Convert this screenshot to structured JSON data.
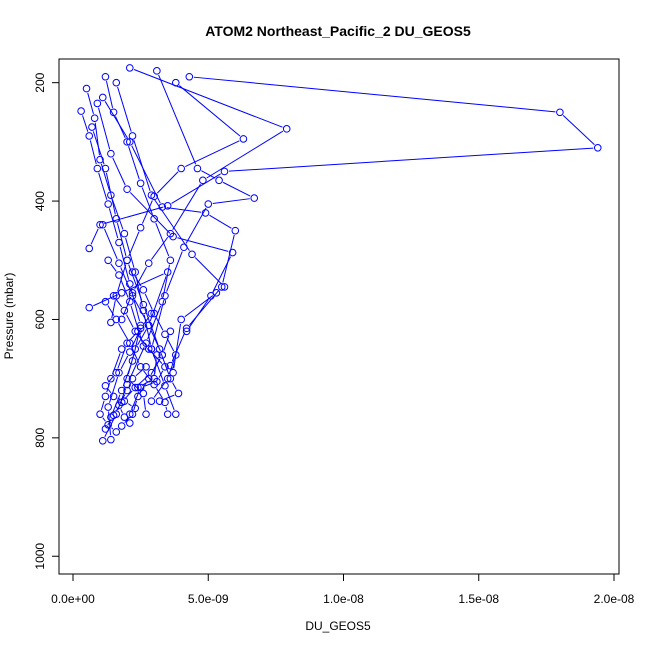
{
  "chart_data": {
    "type": "line",
    "title": "ATOM2 Northeast_Pacific_2 DU_GEOS5",
    "xlabel": "DU_GEOS5",
    "ylabel": "Pressure (mbar)",
    "xlim": [
      0,
      2e-08
    ],
    "ylim": [
      1030,
      160
    ],
    "y_reversed": true,
    "x_ticks": [
      0,
      5e-09,
      1e-08,
      1.5e-08,
      2e-08
    ],
    "x_tick_labels": [
      "0.0e+00",
      "5.0e-09",
      "1.0e-08",
      "1.5e-08",
      "2.0e-08"
    ],
    "y_ticks": [
      200,
      400,
      600,
      800,
      1000
    ],
    "y_tick_labels": [
      "200",
      "400",
      "600",
      "800",
      "1000"
    ],
    "grid": false,
    "legend": "none",
    "color": "#0000ff",
    "marker": "open-circle",
    "series": [
      {
        "x": [
          1.2e-09,
          1.5e-09,
          2e-09,
          2.5e-09,
          3e-09,
          3.6e-09,
          3.3e-09,
          2.7e-09,
          2e-09,
          1.6e-09,
          1.1e-09
        ],
        "y": [
          190,
          250,
          300,
          370,
          430,
          500,
          570,
          640,
          710,
          760,
          805
        ]
      },
      {
        "x": [
          5e-10,
          8e-10,
          1e-09,
          1.4e-09,
          1.9e-09,
          2.3e-09,
          2.6e-09,
          2.9e-09,
          3.4e-09,
          3.8e-09
        ],
        "y": [
          210,
          260,
          330,
          390,
          455,
          520,
          585,
          650,
          712,
          760
        ]
      },
      {
        "x": [
          3e-10,
          6e-10,
          9e-10,
          1.3e-09,
          1.7e-09,
          2.1e-09,
          2.5e-09,
          2.2e-09,
          1.8e-09,
          1.4e-09
        ],
        "y": [
          248,
          290,
          345,
          405,
          470,
          540,
          610,
          670,
          720,
          765
        ]
      },
      {
        "x": [
          4.3e-09,
          1.8e-08,
          1.94e-08,
          5.6e-09,
          3.5e-09,
          1e-09,
          6e-10
        ],
        "y": [
          190,
          250,
          310,
          350,
          408,
          440,
          480
        ]
      },
      {
        "x": [
          3.8e-09,
          6.3e-09,
          4e-09,
          3e-09,
          2.5e-09,
          2e-09,
          1.6e-09,
          1.4e-09
        ],
        "y": [
          200,
          295,
          345,
          392,
          445,
          500,
          560,
          605
        ]
      },
      {
        "x": [
          2.1e-09,
          7.9e-09,
          4.8e-09,
          3.6e-09,
          2.8e-09,
          2.2e-09,
          1.8e-09
        ],
        "y": [
          175,
          278,
          365,
          455,
          505,
          555,
          600
        ]
      },
      {
        "x": [
          3.1e-09,
          4.6e-09,
          5.4e-09,
          6.7e-09,
          5e-09,
          4.1e-09,
          3.4e-09,
          2.9e-09
        ],
        "y": [
          180,
          345,
          365,
          395,
          405,
          478,
          560,
          650
        ]
      },
      {
        "x": [
          1.1e-09,
          2.1e-09,
          3.3e-09,
          4.9e-09,
          6e-09,
          5.5e-09,
          4.2e-09,
          3.6e-09
        ],
        "y": [
          225,
          300,
          410,
          420,
          450,
          545,
          615,
          678
        ]
      },
      {
        "x": [
          9e-10,
          1.4e-09,
          2e-09,
          3.7e-09,
          5.9e-09,
          5.1e-09,
          4.2e-09
        ],
        "y": [
          235,
          320,
          380,
          460,
          487,
          560,
          620
        ]
      },
      {
        "x": [
          7e-10,
          1.2e-09,
          1.6e-09,
          2e-09,
          2.6e-09,
          3.2e-09,
          3.6e-09,
          3.9e-09,
          3.2e-09
        ],
        "y": [
          275,
          345,
          430,
          500,
          575,
          650,
          700,
          725,
          738
        ]
      },
      {
        "x": [
          1.6e-09,
          2.2e-09,
          2.9e-09,
          4.4e-09,
          5.6e-09,
          5.3e-09,
          4e-09,
          3.7e-09
        ],
        "y": [
          200,
          290,
          390,
          490,
          545,
          555,
          600,
          690
        ]
      },
      {
        "x": [
          6e-10,
          1.8e-09,
          3.5e-09,
          2.8e-09,
          2.3e-09,
          2e-09,
          2.6e-09,
          2.7e-09
        ],
        "y": [
          580,
          555,
          520,
          610,
          650,
          700,
          725,
          760
        ]
      },
      {
        "x": [
          1.1e-09,
          1.7e-09,
          2.2e-09,
          2.8e-09,
          3.3e-09,
          2.9e-09,
          2.3e-09,
          1.8e-09,
          1.5e-09,
          1.2e-09
        ],
        "y": [
          440,
          505,
          560,
          610,
          660,
          690,
          715,
          740,
          762,
          785
        ]
      },
      {
        "x": [
          1.5e-09,
          1.9e-09,
          2.3e-09,
          2.8e-09,
          3.4e-09,
          3.1e-09,
          2.5e-09,
          2.1e-09
        ],
        "y": [
          560,
          585,
          620,
          650,
          680,
          705,
          715,
          760
        ]
      },
      {
        "x": [
          1.3e-09,
          1.7e-09,
          2.1e-09,
          2.6e-09,
          3.1e-09,
          3e-09,
          2.4e-09
        ],
        "y": [
          500,
          525,
          570,
          645,
          660,
          700,
          715
        ]
      },
      {
        "x": [
          2.4e-09,
          2e-09,
          1.6e-09,
          1.2e-09,
          1.5e-09,
          1.9e-09,
          2.3e-09
        ],
        "y": [
          620,
          640,
          690,
          712,
          730,
          738,
          750
        ]
      },
      {
        "x": [
          2.9e-09,
          2.5e-09,
          2.1e-09,
          1.7e-09,
          1.3e-09,
          1.4e-09
        ],
        "y": [
          590,
          615,
          655,
          690,
          748,
          803
        ]
      },
      {
        "x": [
          2.2e-09,
          2.6e-09,
          3e-09,
          3.4e-09,
          3.8e-09,
          3.5e-09,
          2.9e-09
        ],
        "y": [
          520,
          550,
          590,
          625,
          660,
          700,
          738
        ]
      },
      {
        "x": [
          1.2e-09,
          1.6e-09,
          2.1e-09,
          2.5e-09,
          3e-09,
          3.4e-09,
          3.5e-09
        ],
        "y": [
          570,
          600,
          640,
          680,
          710,
          740,
          760
        ]
      },
      {
        "x": [
          1.8e-09,
          1.4e-09,
          1.2e-09,
          1e-09,
          1.3e-09,
          1.6e-09
        ],
        "y": [
          650,
          700,
          730,
          760,
          778,
          790
        ]
      },
      {
        "x": [
          2.7e-09,
          2.2e-09,
          2e-09,
          1.7e-09,
          1.9e-09,
          2.1e-09
        ],
        "y": [
          680,
          700,
          720,
          745,
          765,
          775
        ]
      },
      {
        "x": [
          3.6e-09,
          3.3e-09,
          2.8e-09,
          2.4e-09,
          2.2e-09,
          1.8e-09
        ],
        "y": [
          620,
          660,
          700,
          730,
          760,
          780
        ]
      }
    ]
  }
}
